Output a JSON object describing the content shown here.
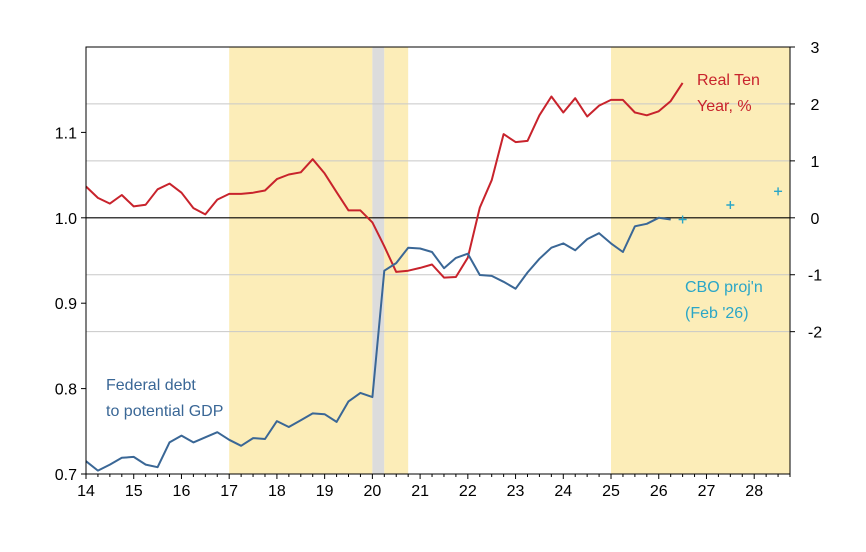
{
  "chart_data": {
    "type": "line",
    "x_range": [
      2014,
      2028.75
    ],
    "x_ticks": [
      "14",
      "15",
      "16",
      "17",
      "18",
      "19",
      "20",
      "21",
      "22",
      "23",
      "24",
      "25",
      "26",
      "27",
      "28"
    ],
    "left_axis": {
      "range": [
        0.7,
        1.2
      ],
      "ticks": [
        "0.7",
        "0.8",
        "0.9",
        "1.0",
        "1.1"
      ]
    },
    "right_axis": {
      "range": [
        -4.5,
        3
      ],
      "ticks": [
        "-2",
        "-1",
        "0",
        "1",
        "2",
        "3"
      ]
    },
    "shading": [
      {
        "start": 2017.0,
        "end": 2020.0,
        "color": "#fcedb8"
      },
      {
        "start": 2020.0,
        "end": 2020.25,
        "color": "#dcdcdc"
      },
      {
        "start": 2020.25,
        "end": 2020.75,
        "color": "#fcedb8"
      },
      {
        "start": 2025.0,
        "end": 2028.75,
        "color": "#fcedb8"
      }
    ],
    "series": [
      {
        "name": "Real Ten Year, %",
        "axis": "right",
        "color": "#c8232c",
        "x": [
          2014.0,
          2014.25,
          2014.5,
          2014.75,
          2015.0,
          2015.25,
          2015.5,
          2015.75,
          2016.0,
          2016.25,
          2016.5,
          2016.75,
          2017.0,
          2017.25,
          2017.5,
          2017.75,
          2018.0,
          2018.25,
          2018.5,
          2018.75,
          2019.0,
          2019.25,
          2019.5,
          2019.75,
          2020.0,
          2020.25,
          2020.5,
          2020.75,
          2021.0,
          2021.25,
          2021.5,
          2021.75,
          2022.0,
          2022.25,
          2022.5,
          2022.75,
          2023.0,
          2023.25,
          2023.5,
          2023.75,
          2024.0,
          2024.25,
          2024.5,
          2024.75,
          2025.0,
          2025.25,
          2025.5,
          2025.75,
          2026.0,
          2026.25,
          2026.5
        ],
        "values": [
          0.55,
          0.35,
          0.25,
          0.4,
          0.2,
          0.23,
          0.5,
          0.6,
          0.44,
          0.17,
          0.06,
          0.32,
          0.42,
          0.42,
          0.44,
          0.48,
          0.68,
          0.76,
          0.8,
          1.03,
          0.78,
          0.45,
          0.13,
          0.13,
          -0.08,
          -0.5,
          -0.95,
          -0.93,
          -0.88,
          -0.82,
          -1.05,
          -1.04,
          -0.7,
          0.18,
          0.66,
          1.47,
          1.33,
          1.35,
          1.8,
          2.13,
          1.85,
          2.1,
          1.78,
          1.97,
          2.07,
          2.07,
          1.85,
          1.8,
          1.87,
          2.05,
          2.37
        ]
      },
      {
        "name": "Federal debt to potential GDP",
        "axis": "left",
        "color": "#3a6796",
        "x": [
          2014.0,
          2014.25,
          2014.5,
          2014.75,
          2015.0,
          2015.25,
          2015.5,
          2015.75,
          2016.0,
          2016.25,
          2016.5,
          2016.75,
          2017.0,
          2017.25,
          2017.5,
          2017.75,
          2018.0,
          2018.25,
          2018.5,
          2018.75,
          2019.0,
          2019.25,
          2019.5,
          2019.75,
          2020.0,
          2020.25,
          2020.5,
          2020.75,
          2021.0,
          2021.25,
          2021.5,
          2021.75,
          2022.0,
          2022.25,
          2022.5,
          2022.75,
          2023.0,
          2023.25,
          2023.5,
          2023.75,
          2024.0,
          2024.25,
          2024.5,
          2024.75,
          2025.0,
          2025.25,
          2025.5,
          2025.75,
          2026.0,
          2026.25
        ],
        "values": [
          0.715,
          0.704,
          0.711,
          0.719,
          0.72,
          0.711,
          0.708,
          0.737,
          0.745,
          0.737,
          0.743,
          0.749,
          0.74,
          0.733,
          0.742,
          0.741,
          0.762,
          0.755,
          0.763,
          0.771,
          0.77,
          0.761,
          0.785,
          0.795,
          0.79,
          0.938,
          0.947,
          0.965,
          0.964,
          0.96,
          0.941,
          0.953,
          0.958,
          0.933,
          0.932,
          0.925,
          0.917,
          0.936,
          0.952,
          0.965,
          0.97,
          0.962,
          0.975,
          0.982,
          0.97,
          0.96,
          0.99,
          0.993,
          1.0,
          0.998
        ]
      },
      {
        "name": "CBO proj'n (Feb '26)",
        "axis": "left",
        "color": "#2aa6c7",
        "marker": "plus",
        "x": [
          2026.5,
          2027.5,
          2028.5
        ],
        "values": [
          0.998,
          1.015,
          1.031
        ]
      }
    ],
    "zero_line": {
      "axis": "right",
      "value": 0
    },
    "annotations": {
      "real_ten": [
        "Real Ten",
        "Year, %"
      ],
      "debt": [
        "Federal debt",
        "to potential GDP"
      ],
      "cbo": [
        "CBO proj'n",
        "(Feb '26)"
      ]
    }
  }
}
